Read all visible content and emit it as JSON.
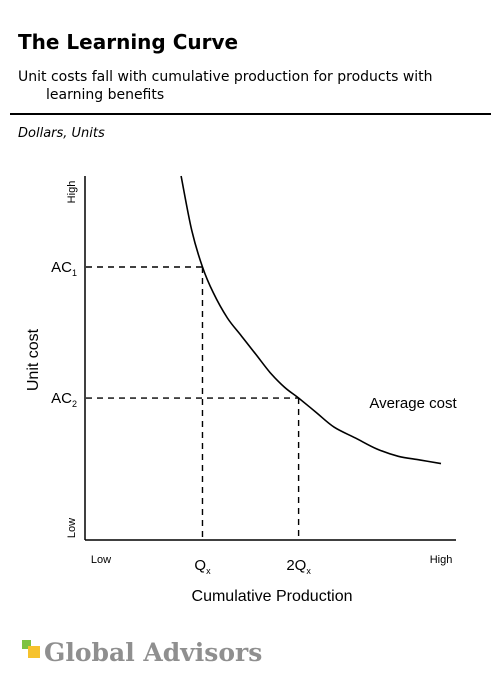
{
  "header": {
    "title": "The Learning Curve",
    "subtitle": "Unit costs fall with cumulative production for products with learning benefits",
    "units_note": "Dollars, Units"
  },
  "chart_data": {
    "type": "line",
    "xlabel": "Cumulative Production",
    "ylabel": "Unit cost",
    "x_ticks": [
      {
        "label": "Low",
        "x": 0
      },
      {
        "label": "High",
        "x": 1
      }
    ],
    "y_ticks": [
      {
        "label": "Low",
        "y": 0
      },
      {
        "label": "High",
        "y": 1
      }
    ],
    "xlim": [
      0,
      1
    ],
    "ylim": [
      0,
      1
    ],
    "series": [
      {
        "name": "Average cost",
        "x": [
          0.27,
          0.3,
          0.33,
          0.36,
          0.4,
          0.44,
          0.48,
          0.52,
          0.56,
          0.6,
          0.65,
          0.7,
          0.76,
          0.82,
          0.88,
          0.94,
          1.0
        ],
        "y": [
          1.0,
          0.85,
          0.75,
          0.68,
          0.61,
          0.56,
          0.51,
          0.46,
          0.42,
          0.39,
          0.35,
          0.31,
          0.28,
          0.25,
          0.23,
          0.22,
          0.21
        ]
      }
    ],
    "annotations": [
      {
        "main": "AC",
        "sub": "1",
        "axis": "y",
        "x": 0.33,
        "y": 0.75
      },
      {
        "main": "AC",
        "sub": "2",
        "axis": "y",
        "x": 0.6,
        "y": 0.39
      },
      {
        "main": "Q",
        "sub": "x",
        "axis": "x",
        "x": 0.33,
        "y": 0.75
      },
      {
        "main": "2Q",
        "sub": "x",
        "axis": "x",
        "x": 0.6,
        "y": 0.39
      }
    ],
    "grid": false,
    "legend": "none"
  },
  "brand": {
    "logo_text": "Global Advisors",
    "colors": {
      "green": "#7dc242",
      "yellow": "#f6c22d",
      "gray": "#8f8f8f"
    }
  }
}
